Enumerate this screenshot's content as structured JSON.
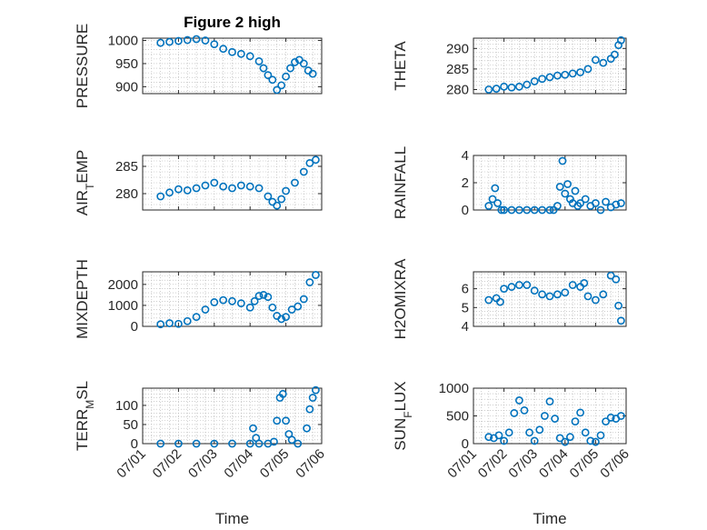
{
  "figure": {
    "title": "Figure 2 high",
    "marker_color": "#0072bd"
  },
  "chart_data": [
    {
      "type": "scatter",
      "title": "Figure 2 high",
      "ylabel": "PRESSURE",
      "xlabel": "",
      "xlim": [
        "07/01",
        "07/06"
      ],
      "ylim": [
        885,
        1005
      ],
      "yticks": [
        900,
        950,
        1000
      ],
      "xticks": [],
      "x": [
        "07/01 12:00",
        "07/01 18:00",
        "07/02 00:00",
        "07/02 06:00",
        "07/02 12:00",
        "07/02 18:00",
        "07/03 00:00",
        "07/03 06:00",
        "07/03 12:00",
        "07/03 18:00",
        "07/04 00:00",
        "07/04 06:00",
        "07/04 09:00",
        "07/04 12:00",
        "07/04 15:00",
        "07/04 18:00",
        "07/04 21:00",
        "07/05 00:00",
        "07/05 03:00",
        "07/05 06:00",
        "07/05 09:00",
        "07/05 12:00",
        "07/05 15:00",
        "07/05 18:00"
      ],
      "y": [
        995,
        997,
        999,
        1001,
        1003,
        1000,
        992,
        982,
        975,
        971,
        966,
        955,
        940,
        925,
        915,
        893,
        903,
        922,
        940,
        953,
        958,
        950,
        935,
        928
      ]
    },
    {
      "type": "scatter",
      "title": "",
      "ylabel": "THETA",
      "xlabel": "",
      "xlim": [
        "07/01",
        "07/06"
      ],
      "ylim": [
        279,
        292.5
      ],
      "yticks": [
        280,
        285,
        290
      ],
      "xticks": [],
      "x": [
        "07/01 12:00",
        "07/01 18:00",
        "07/02 00:00",
        "07/02 06:00",
        "07/02 12:00",
        "07/02 18:00",
        "07/03 00:00",
        "07/03 06:00",
        "07/03 12:00",
        "07/03 18:00",
        "07/04 00:00",
        "07/04 06:00",
        "07/04 12:00",
        "07/04 18:00",
        "07/05 00:00",
        "07/05 06:00",
        "07/05 12:00",
        "07/05 15:00",
        "07/05 18:00",
        "07/05 20:00"
      ],
      "y": [
        280,
        280.2,
        280.7,
        280.5,
        280.7,
        281.2,
        282,
        282.6,
        283,
        283.4,
        283.6,
        283.9,
        284.2,
        285,
        287.2,
        286.5,
        287.5,
        288.5,
        290.8,
        292
      ]
    },
    {
      "type": "scatter",
      "title": "",
      "ylabel": "AIR_TEMP",
      "xlabel": "",
      "xlim": [
        "07/01",
        "07/06"
      ],
      "ylim": [
        277,
        287
      ],
      "yticks": [
        280,
        285
      ],
      "xticks": [],
      "x": [
        "07/01 12:00",
        "07/01 18:00",
        "07/02 00:00",
        "07/02 06:00",
        "07/02 12:00",
        "07/02 18:00",
        "07/03 00:00",
        "07/03 06:00",
        "07/03 12:00",
        "07/03 18:00",
        "07/04 00:00",
        "07/04 06:00",
        "07/04 12:00",
        "07/04 15:00",
        "07/04 18:00",
        "07/04 21:00",
        "07/05 00:00",
        "07/05 06:00",
        "07/05 12:00",
        "07/05 16:00",
        "07/05 20:00"
      ],
      "y": [
        279.5,
        280.2,
        280.8,
        280.6,
        281,
        281.5,
        282,
        281.3,
        281,
        281.5,
        281.3,
        281,
        279.5,
        278.5,
        277.8,
        279,
        280.5,
        282,
        284,
        285.6,
        286.2
      ]
    },
    {
      "type": "scatter",
      "title": "",
      "ylabel": "RAINFALL",
      "xlabel": "",
      "xlim": [
        "07/01",
        "07/06"
      ],
      "ylim": [
        0,
        4
      ],
      "yticks": [
        0,
        2,
        4
      ],
      "xticks": [],
      "x": [
        "07/01 12:00",
        "07/01 15:00",
        "07/01 17:00",
        "07/01 19:00",
        "07/01 22:00",
        "07/02 00:00",
        "07/02 06:00",
        "07/02 12:00",
        "07/02 18:00",
        "07/03 00:00",
        "07/03 06:00",
        "07/03 12:00",
        "07/03 15:00",
        "07/03 18:00",
        "07/03 20:00",
        "07/03 22:00",
        "07/04 00:00",
        "07/04 02:00",
        "07/04 04:00",
        "07/04 06:00",
        "07/04 08:00",
        "07/04 10:00",
        "07/04 12:00",
        "07/04 16:00",
        "07/04 20:00",
        "07/05 00:00",
        "07/05 04:00",
        "07/05 08:00",
        "07/05 12:00",
        "07/05 16:00",
        "07/05 20:00"
      ],
      "y": [
        0.3,
        0.8,
        1.6,
        0.5,
        0,
        0,
        0,
        0,
        0,
        0,
        0,
        0,
        0,
        0.3,
        1.7,
        3.6,
        1.2,
        1.9,
        0.8,
        0.5,
        1.4,
        0.3,
        0.5,
        0.8,
        0.3,
        0.5,
        0,
        0.6,
        0.2,
        0.4,
        0.5
      ]
    },
    {
      "type": "scatter",
      "title": "",
      "ylabel": "MIXDEPTH",
      "xlabel": "",
      "xlim": [
        "07/01",
        "07/06"
      ],
      "ylim": [
        0,
        2600
      ],
      "yticks": [
        0,
        1000,
        2000
      ],
      "xticks": [],
      "x": [
        "07/01 12:00",
        "07/01 18:00",
        "07/02 00:00",
        "07/02 06:00",
        "07/02 12:00",
        "07/02 18:00",
        "07/03 00:00",
        "07/03 06:00",
        "07/03 12:00",
        "07/03 18:00",
        "07/04 00:00",
        "07/04 03:00",
        "07/04 06:00",
        "07/04 09:00",
        "07/04 12:00",
        "07/04 15:00",
        "07/04 18:00",
        "07/04 21:00",
        "07/05 00:00",
        "07/05 04:00",
        "07/05 08:00",
        "07/05 12:00",
        "07/05 16:00",
        "07/05 20:00"
      ],
      "y": [
        100,
        150,
        120,
        250,
        450,
        800,
        1150,
        1250,
        1200,
        1100,
        900,
        1200,
        1450,
        1500,
        1400,
        900,
        500,
        350,
        450,
        800,
        950,
        1300,
        2100,
        2450
      ]
    },
    {
      "type": "scatter",
      "title": "",
      "ylabel": "H2OMIXRA",
      "xlabel": "",
      "xlim": [
        "07/01",
        "07/06"
      ],
      "ylim": [
        4,
        6.9
      ],
      "yticks": [
        4,
        5,
        6
      ],
      "xticks": [],
      "x": [
        "07/01 12:00",
        "07/01 18:00",
        "07/01 21:00",
        "07/02 00:00",
        "07/02 06:00",
        "07/02 12:00",
        "07/02 18:00",
        "07/03 00:00",
        "07/03 06:00",
        "07/03 12:00",
        "07/03 18:00",
        "07/04 00:00",
        "07/04 06:00",
        "07/04 12:00",
        "07/04 15:00",
        "07/04 18:00",
        "07/05 00:00",
        "07/05 06:00",
        "07/05 12:00",
        "07/05 16:00",
        "07/05 18:00",
        "07/05 20:00"
      ],
      "y": [
        5.4,
        5.5,
        5.3,
        6,
        6.1,
        6.2,
        6.2,
        5.9,
        5.7,
        5.6,
        5.7,
        5.8,
        6.2,
        6.1,
        6.3,
        5.6,
        5.4,
        5.7,
        6.7,
        6.5,
        5.1,
        4.3
      ]
    },
    {
      "type": "scatter",
      "title": "",
      "ylabel": "TERR_MSL",
      "xlabel": "Time",
      "xlim": [
        "07/01",
        "07/06"
      ],
      "ylim": [
        0,
        145
      ],
      "yticks": [
        0,
        50,
        100
      ],
      "xticks": [
        "07/01",
        "07/02",
        "07/03",
        "07/04",
        "07/05",
        "07/06"
      ],
      "x": [
        "07/01 12:00",
        "07/02 00:00",
        "07/02 12:00",
        "07/03 00:00",
        "07/03 12:00",
        "07/04 00:00",
        "07/04 02:00",
        "07/04 04:00",
        "07/04 06:00",
        "07/04 12:00",
        "07/04 16:00",
        "07/04 18:00",
        "07/04 20:00",
        "07/04 22:00",
        "07/05 00:00",
        "07/05 02:00",
        "07/05 04:00",
        "07/05 08:00",
        "07/05 14:00",
        "07/05 16:00",
        "07/05 18:00",
        "07/05 20:00"
      ],
      "y": [
        0,
        0,
        0,
        0,
        0,
        0,
        40,
        15,
        0,
        0,
        5,
        60,
        120,
        130,
        60,
        25,
        10,
        0,
        40,
        90,
        120,
        140
      ]
    },
    {
      "type": "scatter",
      "title": "",
      "ylabel": "SUN_FLUX",
      "xlabel": "Time",
      "xlim": [
        "07/01",
        "07/06"
      ],
      "ylim": [
        0,
        1000
      ],
      "yticks": [
        0,
        500,
        1000
      ],
      "xticks": [
        "07/01",
        "07/02",
        "07/03",
        "07/04",
        "07/05",
        "07/06"
      ],
      "x": [
        "07/01 12:00",
        "07/01 16:00",
        "07/01 20:00",
        "07/02 00:00",
        "07/02 04:00",
        "07/02 08:00",
        "07/02 12:00",
        "07/02 16:00",
        "07/02 20:00",
        "07/03 00:00",
        "07/03 04:00",
        "07/03 08:00",
        "07/03 12:00",
        "07/03 16:00",
        "07/03 20:00",
        "07/04 00:00",
        "07/04 04:00",
        "07/04 08:00",
        "07/04 12:00",
        "07/04 16:00",
        "07/04 20:00",
        "07/05 00:00",
        "07/05 04:00",
        "07/05 08:00",
        "07/05 12:00",
        "07/05 16:00",
        "07/05 20:00"
      ],
      "y": [
        120,
        100,
        150,
        50,
        200,
        550,
        780,
        600,
        200,
        50,
        250,
        500,
        760,
        450,
        100,
        30,
        120,
        400,
        560,
        200,
        50,
        30,
        150,
        400,
        470,
        450,
        500
      ]
    }
  ]
}
